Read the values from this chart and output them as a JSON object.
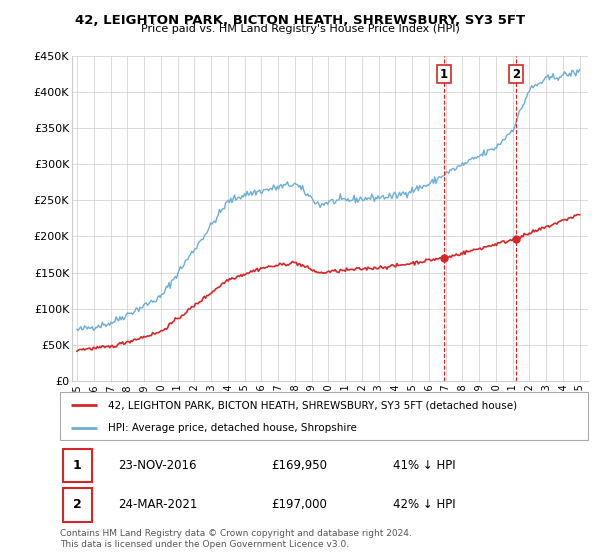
{
  "title": "42, LEIGHTON PARK, BICTON HEATH, SHREWSBURY, SY3 5FT",
  "subtitle": "Price paid vs. HM Land Registry's House Price Index (HPI)",
  "hpi_label": "HPI: Average price, detached house, Shropshire",
  "property_label": "42, LEIGHTON PARK, BICTON HEATH, SHREWSBURY, SY3 5FT (detached house)",
  "footer_text": "Contains HM Land Registry data © Crown copyright and database right 2024.\nThis data is licensed under the Open Government Licence v3.0.",
  "sale1_date": "23-NOV-2016",
  "sale1_price": "£169,950",
  "sale1_pct": "41% ↓ HPI",
  "sale2_date": "24-MAR-2021",
  "sale2_price": "£197,000",
  "sale2_pct": "42% ↓ HPI",
  "hpi_color": "#6baed6",
  "property_color": "#d62728",
  "sale1_x": 2016.9,
  "sale2_x": 2021.23,
  "ylim": [
    0,
    450000
  ],
  "xlim_start": 1994.7,
  "xlim_end": 2025.5,
  "yticks": [
    0,
    50000,
    100000,
    150000,
    200000,
    250000,
    300000,
    350000,
    400000,
    450000
  ],
  "ytick_labels": [
    "£0",
    "£50K",
    "£100K",
    "£150K",
    "£200K",
    "£250K",
    "£300K",
    "£350K",
    "£400K",
    "£450K"
  ],
  "xtick_years": [
    1995,
    1996,
    1997,
    1998,
    1999,
    2000,
    2001,
    2002,
    2003,
    2004,
    2005,
    2006,
    2007,
    2008,
    2009,
    2010,
    2011,
    2012,
    2013,
    2014,
    2015,
    2016,
    2017,
    2018,
    2019,
    2020,
    2021,
    2022,
    2023,
    2024,
    2025
  ]
}
